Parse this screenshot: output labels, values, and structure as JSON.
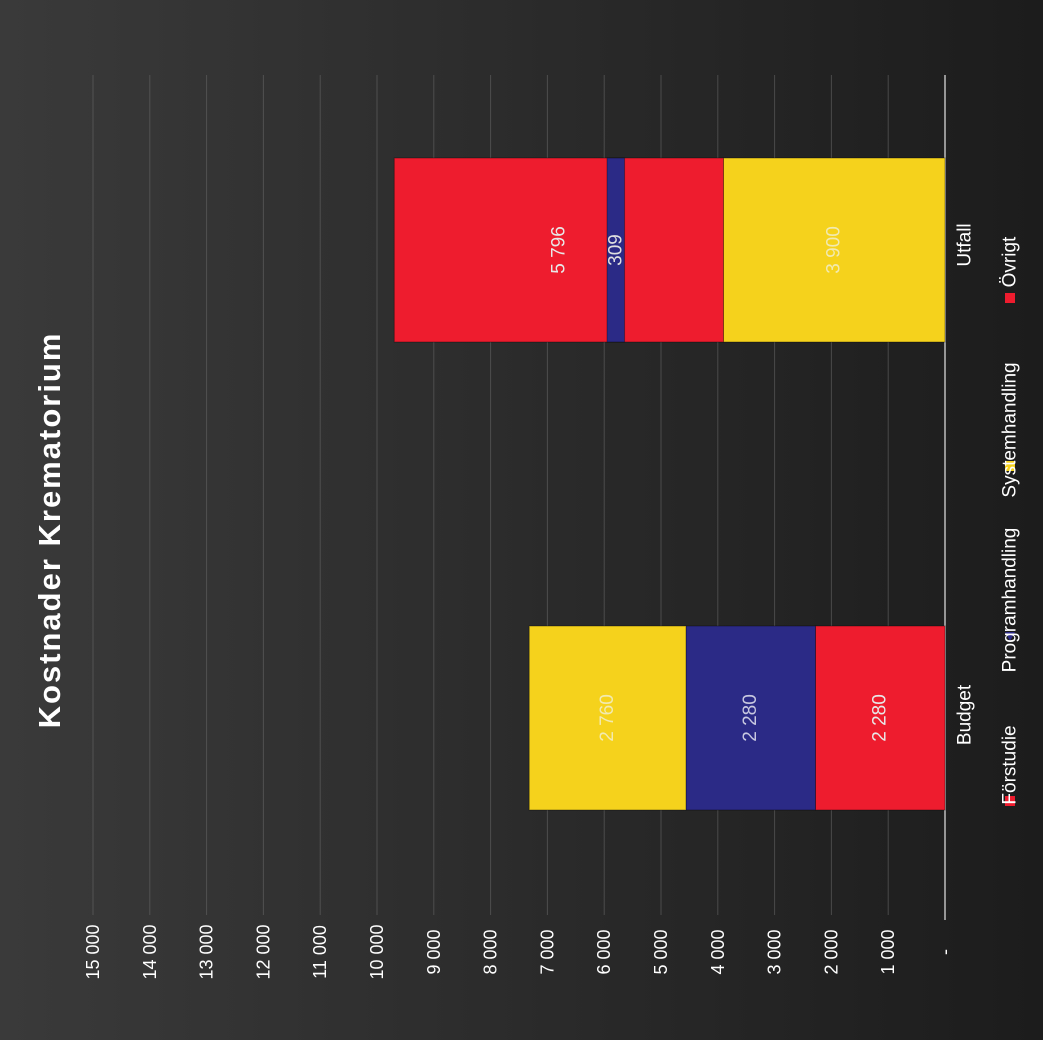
{
  "chart_data": {
    "type": "bar",
    "orientation": "stacked",
    "rotated": true,
    "title": "Kostnader Krematorium",
    "categories": [
      "Budget",
      "Utfall"
    ],
    "series": [
      {
        "name": "Förstudie",
        "values": [
          2280,
          0
        ],
        "labels": [
          "2 280",
          ""
        ],
        "color": "#ee1c2e",
        "label_color": "#e8e8e8"
      },
      {
        "name": "Programhandling",
        "values": [
          2280,
          0
        ],
        "labels": [
          "2 280",
          ""
        ],
        "color": "#2b2a86",
        "label_color": "#c8c8e0"
      },
      {
        "name": "Systemhandling",
        "values": [
          2760,
          3900
        ],
        "labels": [
          "2 760",
          "3 900"
        ],
        "color": "#f5d21c",
        "label_color": "#f2eab0"
      },
      {
        "name": "Övrigt",
        "values": [
          0,
          5796
        ],
        "labels": [
          "",
          "5 796"
        ],
        "color": "#ee1c2e",
        "label_color": "#e8e8e8"
      }
    ],
    "extra_labels": [
      {
        "category": "Utfall",
        "value": 309,
        "text": "309",
        "color": "#2b2a86"
      }
    ],
    "ylim": [
      0,
      15000
    ],
    "yticks": [
      0,
      1000,
      2000,
      3000,
      4000,
      5000,
      6000,
      7000,
      8000,
      9000,
      10000,
      11000,
      12000,
      13000,
      14000,
      15000
    ],
    "ytick_labels": [
      "-",
      "1 000",
      "2 000",
      "3 000",
      "4 000",
      "5 000",
      "6 000",
      "7 000",
      "8 000",
      "9 000",
      "10 000",
      "11 000",
      "12 000",
      "13 000",
      "14 000",
      "15 000"
    ],
    "grid": true,
    "legend_position": "bottom",
    "background": "#2a2a2a"
  }
}
